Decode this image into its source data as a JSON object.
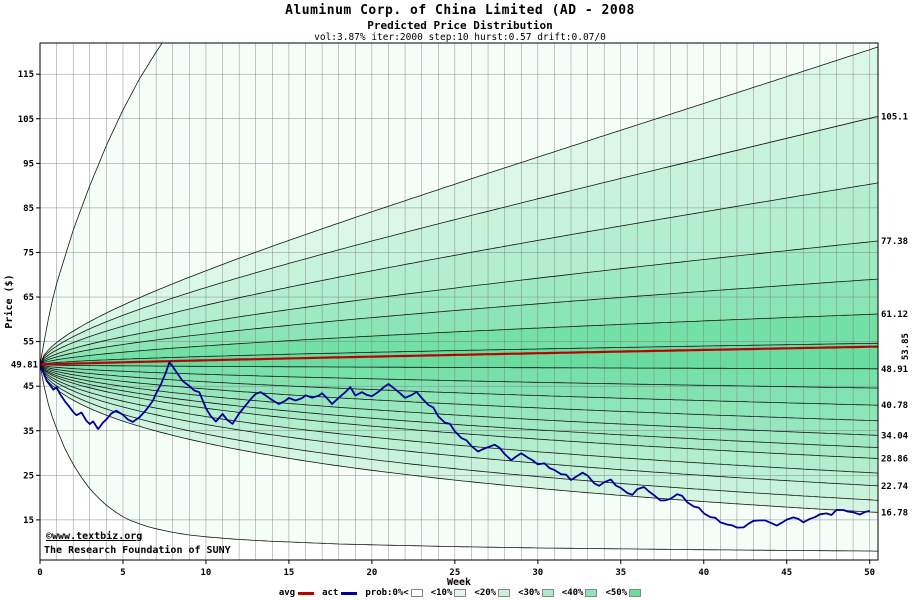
{
  "header": {
    "title": "Aluminum Corp. of China Limited (AD - 2008",
    "subtitle": "Predicted Price Distribution",
    "params": "vol:3.87% iter:2000 step:10 hurst:0.57 drift:0.07/0"
  },
  "watermark": {
    "line1": "©www.textbiz.org",
    "line2": "The Research Foundation of SUNY",
    "color": "#0000bb"
  },
  "chart_data": {
    "type": "line",
    "title": "Aluminum Corp. of China Limited (AD - 2008",
    "subtitle": "Predicted Price Distribution",
    "xlabel": "Week",
    "ylabel": "Price ($)",
    "xlim": [
      0,
      50.5
    ],
    "ylim": [
      6,
      122
    ],
    "x_ticks": [
      0,
      5,
      10,
      15,
      20,
      25,
      30,
      35,
      40,
      45,
      50
    ],
    "y_ticks": [
      15,
      25,
      35,
      45,
      55,
      65,
      75,
      85,
      95,
      105,
      115
    ],
    "start_price": 49.81,
    "start_label": "49.81",
    "avg": {
      "name": "avg",
      "color": "#bb0000",
      "start": 49.81,
      "end": 53.85,
      "end_label": "53.85",
      "exp": 0.85
    },
    "fan": {
      "hurst_exp": 0.57,
      "curve_color": "#141414",
      "band_inner": "#5edb99",
      "band_outer": "#f5fdf7",
      "top_envelope_end": 160,
      "bottom_envelope_end": 8,
      "top_envelope": [
        [
          0,
          49.81
        ],
        [
          0.3,
          56
        ],
        [
          0.6,
          62
        ],
        [
          1,
          68
        ],
        [
          1.5,
          74
        ],
        [
          2,
          80
        ],
        [
          2.5,
          85
        ],
        [
          3,
          90
        ],
        [
          3.5,
          94.5
        ],
        [
          4,
          99
        ],
        [
          4.5,
          103
        ],
        [
          5,
          107
        ],
        [
          5.5,
          110.5
        ],
        [
          6,
          114
        ],
        [
          6.5,
          117
        ],
        [
          7,
          120
        ],
        [
          7.5,
          122.8
        ],
        [
          8,
          125
        ],
        [
          10,
          132
        ],
        [
          15,
          140
        ],
        [
          20,
          146
        ],
        [
          30,
          152
        ],
        [
          40,
          156
        ],
        [
          50.5,
          160
        ]
      ],
      "bottom_envelope": [
        [
          0,
          49.81
        ],
        [
          0.3,
          44
        ],
        [
          0.6,
          39.5
        ],
        [
          1,
          35.5
        ],
        [
          1.5,
          31
        ],
        [
          2,
          27.5
        ],
        [
          2.5,
          24.5
        ],
        [
          3,
          22
        ],
        [
          3.5,
          20
        ],
        [
          4,
          18.3
        ],
        [
          4.5,
          16.9
        ],
        [
          5,
          15.7
        ],
        [
          5.5,
          14.8
        ],
        [
          6,
          14.1
        ],
        [
          6.5,
          13.5
        ],
        [
          7,
          13
        ],
        [
          8,
          12.2
        ],
        [
          9,
          11.6
        ],
        [
          10,
          11.2
        ],
        [
          12,
          10.6
        ],
        [
          14,
          10.2
        ],
        [
          16,
          9.9
        ],
        [
          18,
          9.6
        ],
        [
          20,
          9.4
        ],
        [
          25,
          9.0
        ],
        [
          30,
          8.7
        ],
        [
          35,
          8.5
        ],
        [
          40,
          8.3
        ],
        [
          45,
          8.15
        ],
        [
          50.5,
          8.0
        ]
      ],
      "curves": [
        {
          "end": 120.5
        },
        {
          "end": 105.1,
          "label": "105.1"
        },
        {
          "end": 90.3
        },
        {
          "end": 77.38,
          "label": "77.38"
        },
        {
          "end": 68.9
        },
        {
          "end": 61.12,
          "label": "61.12"
        },
        {
          "end": 54.6
        },
        {
          "end": 48.91,
          "label": "48.91"
        },
        {
          "end": 44.6
        },
        {
          "end": 40.78,
          "label": "40.78"
        },
        {
          "end": 37.3
        },
        {
          "end": 34.04,
          "label": "34.04"
        },
        {
          "end": 31.3
        },
        {
          "end": 28.86,
          "label": "28.86"
        },
        {
          "end": 25.6
        },
        {
          "end": 22.74,
          "label": "22.74"
        },
        {
          "end": 19.5
        },
        {
          "end": 16.78,
          "label": "16.78"
        }
      ]
    },
    "actual": {
      "name": "act",
      "color": "#000099",
      "jitter": 0.3,
      "points": [
        [
          0,
          49.8
        ],
        [
          0.2,
          48.0
        ],
        [
          0.4,
          46.5
        ],
        [
          0.6,
          45.2
        ],
        [
          0.8,
          44.3
        ],
        [
          1,
          44.8
        ],
        [
          1.2,
          43.2
        ],
        [
          1.5,
          41.8
        ],
        [
          1.8,
          40.3
        ],
        [
          2,
          39.2
        ],
        [
          2.2,
          38.2
        ],
        [
          2.5,
          38.9
        ],
        [
          2.8,
          37.4
        ],
        [
          3,
          36.2
        ],
        [
          3.2,
          36.9
        ],
        [
          3.5,
          35.4
        ],
        [
          3.8,
          36.6
        ],
        [
          4,
          37.6
        ],
        [
          4.3,
          38.8
        ],
        [
          4.6,
          39.6
        ],
        [
          5,
          38.4
        ],
        [
          5.3,
          37.5
        ],
        [
          5.6,
          36.9
        ],
        [
          6,
          38.1
        ],
        [
          6.4,
          39.9
        ],
        [
          6.8,
          41.8
        ],
        [
          7,
          43.4
        ],
        [
          7.3,
          45.8
        ],
        [
          7.6,
          48.4
        ],
        [
          7.8,
          50.4
        ],
        [
          8,
          49.1
        ],
        [
          8.3,
          47.6
        ],
        [
          8.6,
          46.3
        ],
        [
          9,
          45.1
        ],
        [
          9.3,
          44.2
        ],
        [
          9.6,
          43.6
        ],
        [
          10,
          39.8
        ],
        [
          10.3,
          38.0
        ],
        [
          10.6,
          37.1
        ],
        [
          11,
          38.6
        ],
        [
          11.3,
          37.3
        ],
        [
          11.6,
          36.3
        ],
        [
          12,
          38.9
        ],
        [
          12.4,
          40.9
        ],
        [
          12.8,
          42.4
        ],
        [
          13,
          43.1
        ],
        [
          13.3,
          43.8
        ],
        [
          13.6,
          42.9
        ],
        [
          14,
          42.1
        ],
        [
          14.4,
          41.2
        ],
        [
          14.8,
          41.9
        ],
        [
          15,
          42.6
        ],
        [
          15.4,
          41.6
        ],
        [
          15.8,
          42.3
        ],
        [
          16,
          43.0
        ],
        [
          16.4,
          42.2
        ],
        [
          16.8,
          42.9
        ],
        [
          17,
          43.6
        ],
        [
          17.3,
          42.4
        ],
        [
          17.6,
          41.2
        ],
        [
          18,
          42.6
        ],
        [
          18.4,
          43.9
        ],
        [
          18.7,
          44.6
        ],
        [
          19,
          43.2
        ],
        [
          19.4,
          43.9
        ],
        [
          19.7,
          43.3
        ],
        [
          20,
          42.7
        ],
        [
          20.4,
          43.9
        ],
        [
          20.7,
          44.8
        ],
        [
          21,
          45.6
        ],
        [
          21.4,
          44.4
        ],
        [
          21.7,
          43.4
        ],
        [
          22,
          42.6
        ],
        [
          22.4,
          43.3
        ],
        [
          22.7,
          43.9
        ],
        [
          23,
          42.3
        ],
        [
          23.4,
          41.0
        ],
        [
          23.7,
          40.1
        ],
        [
          24,
          38.4
        ],
        [
          24.4,
          37.1
        ],
        [
          24.7,
          36.4
        ],
        [
          25,
          34.9
        ],
        [
          25.4,
          33.6
        ],
        [
          25.7,
          33.0
        ],
        [
          26,
          31.8
        ],
        [
          26.4,
          30.4
        ],
        [
          26.7,
          30.9
        ],
        [
          27,
          31.4
        ],
        [
          27.4,
          31.9
        ],
        [
          27.7,
          30.9
        ],
        [
          28,
          29.6
        ],
        [
          28.4,
          28.6
        ],
        [
          28.7,
          29.2
        ],
        [
          29,
          29.8
        ],
        [
          29.4,
          28.8
        ],
        [
          29.7,
          28.2
        ],
        [
          30,
          27.2
        ],
        [
          30.4,
          27.9
        ],
        [
          30.7,
          26.9
        ],
        [
          31,
          26.2
        ],
        [
          31.4,
          25.4
        ],
        [
          31.7,
          24.9
        ],
        [
          32,
          24.2
        ],
        [
          32.4,
          25.1
        ],
        [
          32.7,
          25.6
        ],
        [
          33,
          24.7
        ],
        [
          33.4,
          23.3
        ],
        [
          33.7,
          22.6
        ],
        [
          34,
          23.3
        ],
        [
          34.4,
          23.8
        ],
        [
          34.7,
          22.9
        ],
        [
          35,
          22.1
        ],
        [
          35.4,
          21.3
        ],
        [
          35.7,
          20.9
        ],
        [
          36,
          21.9
        ],
        [
          36.4,
          22.4
        ],
        [
          36.7,
          21.4
        ],
        [
          37,
          20.3
        ],
        [
          37.4,
          19.4
        ],
        [
          37.7,
          19.1
        ],
        [
          38,
          19.9
        ],
        [
          38.4,
          20.6
        ],
        [
          38.7,
          20.1
        ],
        [
          39,
          19.2
        ],
        [
          39.4,
          18.3
        ],
        [
          39.7,
          17.6
        ],
        [
          40,
          16.6
        ],
        [
          40.4,
          15.8
        ],
        [
          40.7,
          15.2
        ],
        [
          41,
          14.6
        ],
        [
          41.4,
          14.0
        ],
        [
          41.7,
          13.6
        ],
        [
          42,
          13.1
        ],
        [
          42.4,
          13.6
        ],
        [
          42.7,
          14.1
        ],
        [
          43,
          14.6
        ],
        [
          43.4,
          15.1
        ],
        [
          43.7,
          14.7
        ],
        [
          44,
          14.2
        ],
        [
          44.4,
          13.9
        ],
        [
          44.7,
          14.4
        ],
        [
          45,
          14.9
        ],
        [
          45.4,
          15.4
        ],
        [
          45.7,
          15.0
        ],
        [
          46,
          14.7
        ],
        [
          46.4,
          15.1
        ],
        [
          46.7,
          15.4
        ],
        [
          47,
          16.0
        ],
        [
          47.4,
          16.4
        ],
        [
          47.7,
          16.1
        ],
        [
          48,
          17.0
        ],
        [
          48.4,
          17.5
        ],
        [
          48.7,
          17.1
        ],
        [
          49,
          16.6
        ],
        [
          49.4,
          16.2
        ],
        [
          49.7,
          16.5
        ],
        [
          50,
          16.8
        ]
      ]
    },
    "legend": [
      {
        "label": "avg",
        "type": "line",
        "color": "#bb0000"
      },
      {
        "label": "act",
        "type": "line",
        "color": "#000099"
      },
      {
        "label": "prob:0%<",
        "type": "swatch",
        "color": "#ffffff"
      },
      {
        "label": "<10%",
        "type": "swatch",
        "color": "#e4f9ec"
      },
      {
        "label": "<20%",
        "type": "swatch",
        "color": "#c8f3da"
      },
      {
        "label": "<30%",
        "type": "swatch",
        "color": "#abecc7"
      },
      {
        "label": "<40%",
        "type": "swatch",
        "color": "#8ce5b2"
      },
      {
        "label": "<50%",
        "type": "swatch",
        "color": "#6bdd9d"
      }
    ]
  }
}
